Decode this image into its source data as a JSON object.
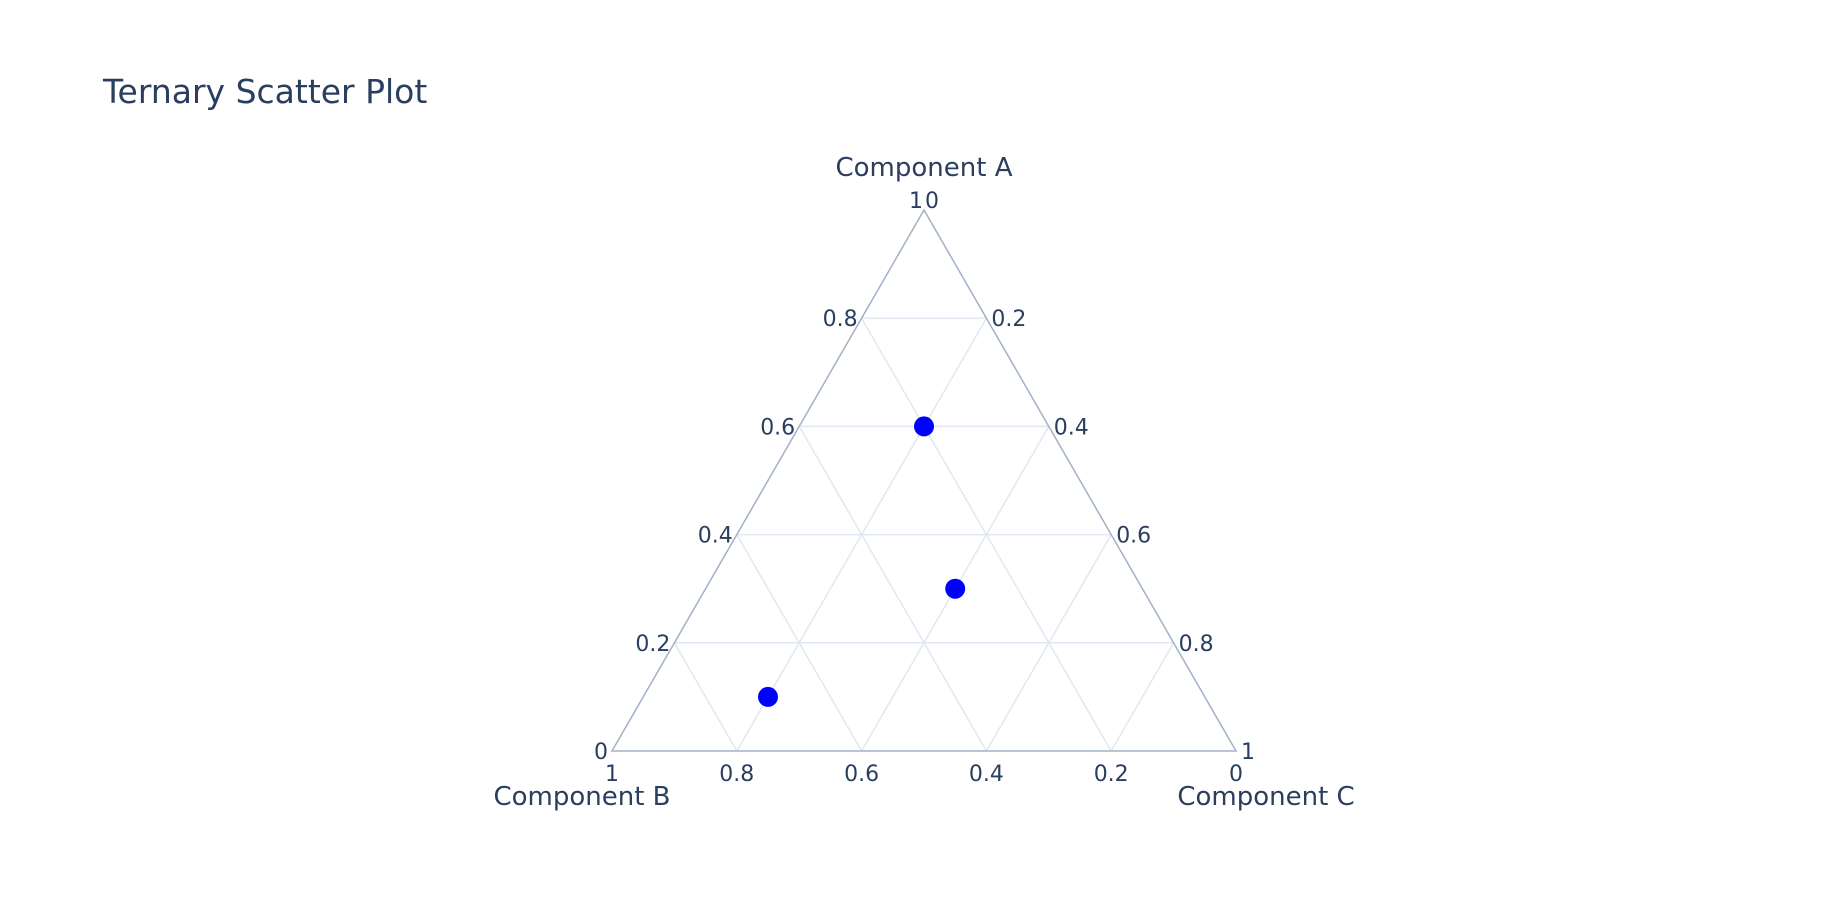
{
  "chart_data": {
    "type": "scatter",
    "subtype": "ternary",
    "title": "Ternary Scatter Plot",
    "axes": {
      "a": {
        "title": "Component A",
        "range": [
          0,
          1
        ],
        "ticks": [
          "0",
          "0.2",
          "0.4",
          "0.6",
          "0.8",
          "1"
        ]
      },
      "b": {
        "title": "Component B",
        "range": [
          0,
          1
        ],
        "ticks": [
          "0",
          "0.2",
          "0.4",
          "0.6",
          "0.8",
          "1"
        ]
      },
      "c": {
        "title": "Component C",
        "range": [
          0,
          1
        ],
        "ticks": [
          "0",
          "0.2",
          "0.4",
          "0.6",
          "0.8",
          "1"
        ]
      }
    },
    "series": [
      {
        "marker_color": "#0000ff",
        "points": [
          {
            "a": 0.1,
            "b": 0.7,
            "c": 0.2
          },
          {
            "a": 0.3,
            "b": 0.3,
            "c": 0.4
          },
          {
            "a": 0.6,
            "b": 0.2,
            "c": 0.2
          }
        ]
      }
    ],
    "grid": true,
    "colors": {
      "axis_line": "#a2b1c6",
      "grid_line": "#dfe8f3",
      "text": "#2a3f5f",
      "marker": "#0000ff"
    }
  }
}
